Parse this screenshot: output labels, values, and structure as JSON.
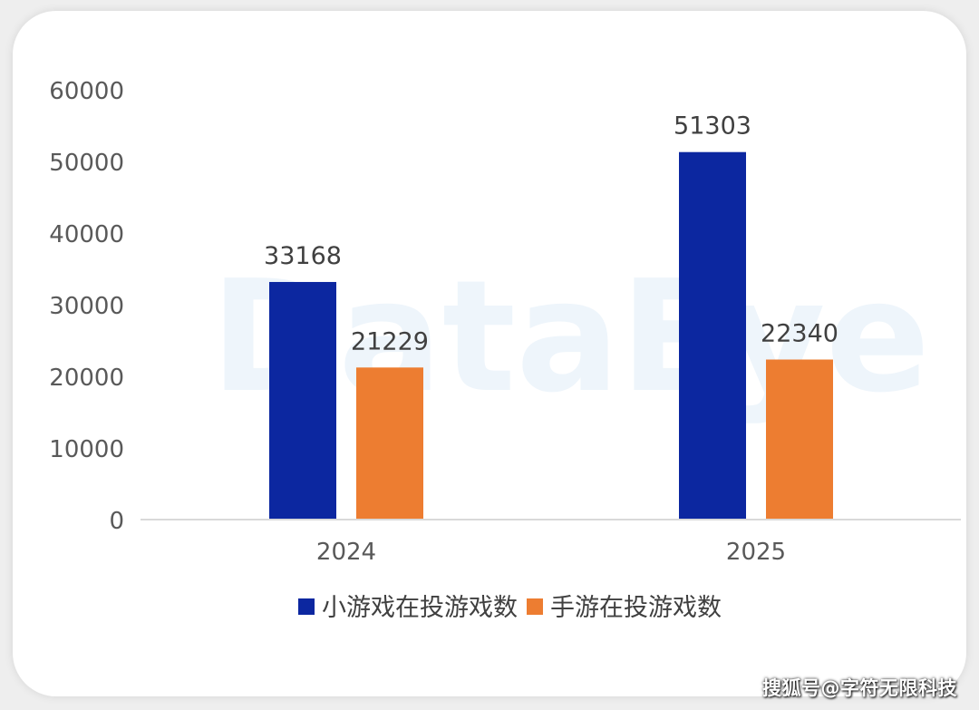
{
  "chart_data": {
    "type": "bar",
    "categories": [
      "2024",
      "2025"
    ],
    "series": [
      {
        "name": "小游戏在投游戏数",
        "color": "#0c27a0",
        "values": [
          33168,
          51303
        ]
      },
      {
        "name": "手游在投游戏数",
        "color": "#ed7d31",
        "values": [
          21229,
          22340
        ]
      }
    ],
    "ylim": [
      0,
      60000
    ],
    "yticks": [
      "0",
      "10000",
      "20000",
      "30000",
      "40000",
      "50000",
      "60000"
    ],
    "legend_position": "bottom",
    "grid": false
  },
  "watermark": "DataEye",
  "credit": "搜狐号@字符无限科技"
}
